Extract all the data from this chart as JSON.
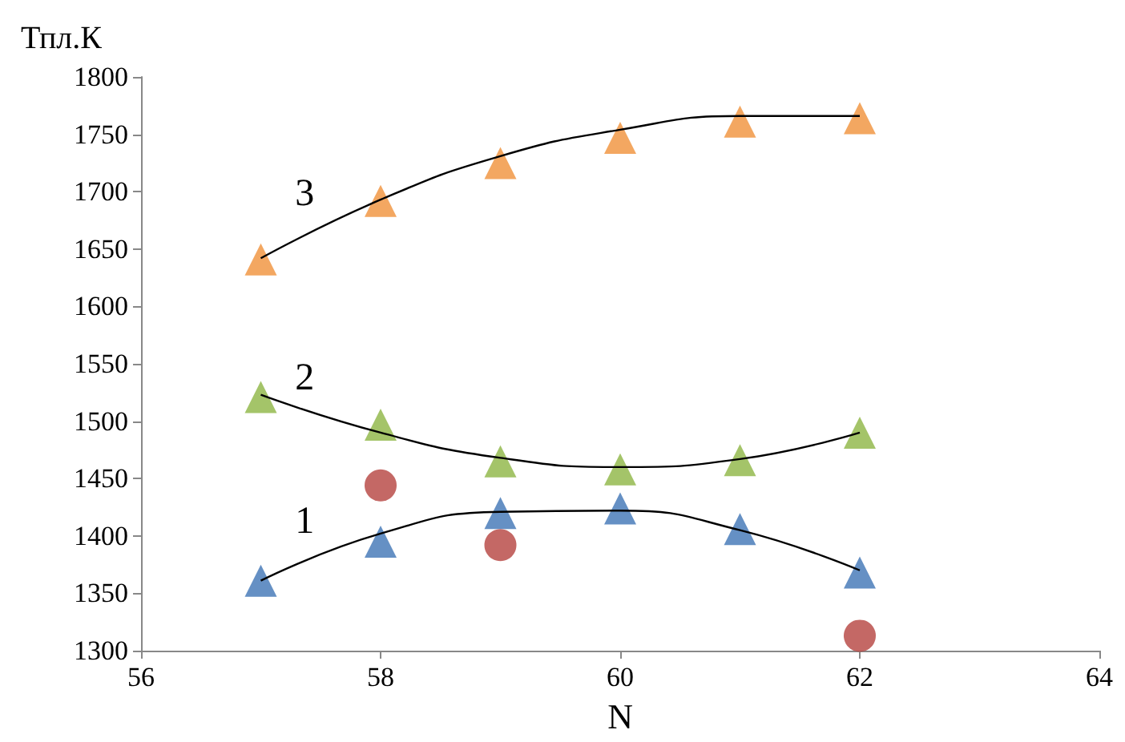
{
  "chart_data": {
    "type": "scatter",
    "xlabel": "N",
    "ylabel": "Тпл.К",
    "xlim": [
      56,
      64
    ],
    "xticks": [
      56,
      58,
      60,
      62,
      64
    ],
    "ylim": [
      1300,
      1800
    ],
    "yticks": [
      1300,
      1350,
      1400,
      1450,
      1500,
      1550,
      1600,
      1650,
      1700,
      1750,
      1800
    ],
    "grid": false,
    "series": [
      {
        "marker": "triangle",
        "color": "#f0913a",
        "x": [
          57,
          58,
          59,
          60,
          61,
          62
        ],
        "values": [
          1641,
          1692,
          1725,
          1747,
          1761,
          1764
        ]
      },
      {
        "marker": "triangle",
        "color": "#8db543",
        "x": [
          57,
          58,
          59,
          60,
          61,
          62
        ],
        "values": [
          1521,
          1497,
          1465,
          1458,
          1466,
          1490
        ]
      },
      {
        "marker": "triangle",
        "color": "#3f74b5",
        "x": [
          57,
          58,
          59,
          60,
          61,
          62
        ],
        "values": [
          1361,
          1395,
          1420,
          1424,
          1406,
          1368
        ]
      },
      {
        "marker": "circle",
        "color": "#b5423f",
        "x": [
          58,
          59,
          62
        ],
        "values": [
          1444,
          1392,
          1313
        ]
      },
      {
        "type": "line",
        "marker": "none",
        "line_style": "solid",
        "color": "#000000",
        "x": [
          57,
          58,
          59,
          60,
          61,
          62
        ],
        "values": [
          1642,
          1693,
          1731,
          1754,
          1766,
          1766
        ]
      },
      {
        "type": "line",
        "marker": "none",
        "line_style": "solid",
        "color": "#000000",
        "x": [
          57,
          58,
          59,
          60,
          61,
          62
        ],
        "values": [
          1523,
          1490,
          1468,
          1460,
          1467,
          1490
        ]
      },
      {
        "type": "line",
        "marker": "none",
        "line_style": "solid",
        "color": "#000000",
        "x": [
          57,
          58,
          59,
          60,
          61,
          62
        ],
        "values": [
          1361,
          1402,
          1421,
          1422,
          1405,
          1370
        ]
      }
    ],
    "annotations": [
      "3",
      "2",
      "1"
    ]
  }
}
